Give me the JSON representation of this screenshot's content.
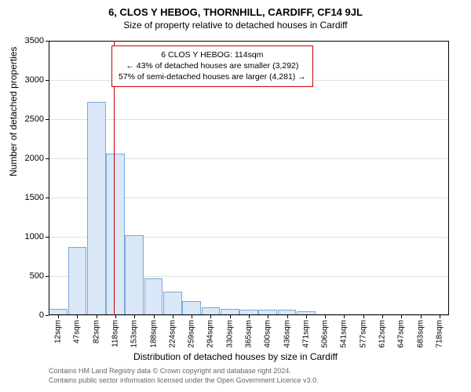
{
  "header": {
    "title": "6, CLOS Y HEBOG, THORNHILL, CARDIFF, CF14 9JL",
    "subtitle": "Size of property relative to detached houses in Cardiff"
  },
  "chart": {
    "type": "histogram",
    "ylabel": "Number of detached properties",
    "xlabel": "Distribution of detached houses by size in Cardiff",
    "ylim": [
      0,
      3500
    ],
    "ytick_step": 500,
    "yticks": [
      0,
      500,
      1000,
      1500,
      2000,
      2500,
      3000,
      3500
    ],
    "xticks": [
      "12sqm",
      "47sqm",
      "82sqm",
      "118sqm",
      "153sqm",
      "188sqm",
      "224sqm",
      "259sqm",
      "294sqm",
      "330sqm",
      "365sqm",
      "400sqm",
      "436sqm",
      "471sqm",
      "506sqm",
      "541sqm",
      "577sqm",
      "612sqm",
      "647sqm",
      "683sqm",
      "718sqm"
    ],
    "bar_values": [
      80,
      870,
      2720,
      2060,
      1020,
      470,
      300,
      180,
      100,
      80,
      70,
      75,
      70,
      50,
      0,
      0,
      0,
      0,
      0,
      0,
      0
    ],
    "bar_fill": "#d9e7f7",
    "bar_border": "#7ba8d9",
    "background_color": "#ffffff",
    "grid_color": "#e0e0e0",
    "axis_color": "#000000",
    "marker": {
      "color": "#cc0000",
      "x_index": 2.91,
      "label_line1": "6 CLOS Y HEBOG: 114sqm",
      "label_line2": "← 43% of detached houses are smaller (3,292)",
      "label_line3": "57% of semi-detached houses are larger (4,281) →"
    },
    "title_fontsize": 13,
    "subtitle_fontsize": 12,
    "label_fontsize": 12,
    "tick_fontsize": 11
  },
  "footer": {
    "line1": "Contains HM Land Registry data © Crown copyright and database right 2024.",
    "line2": "Contains public sector information licensed under the Open Government Licence v3.0."
  }
}
